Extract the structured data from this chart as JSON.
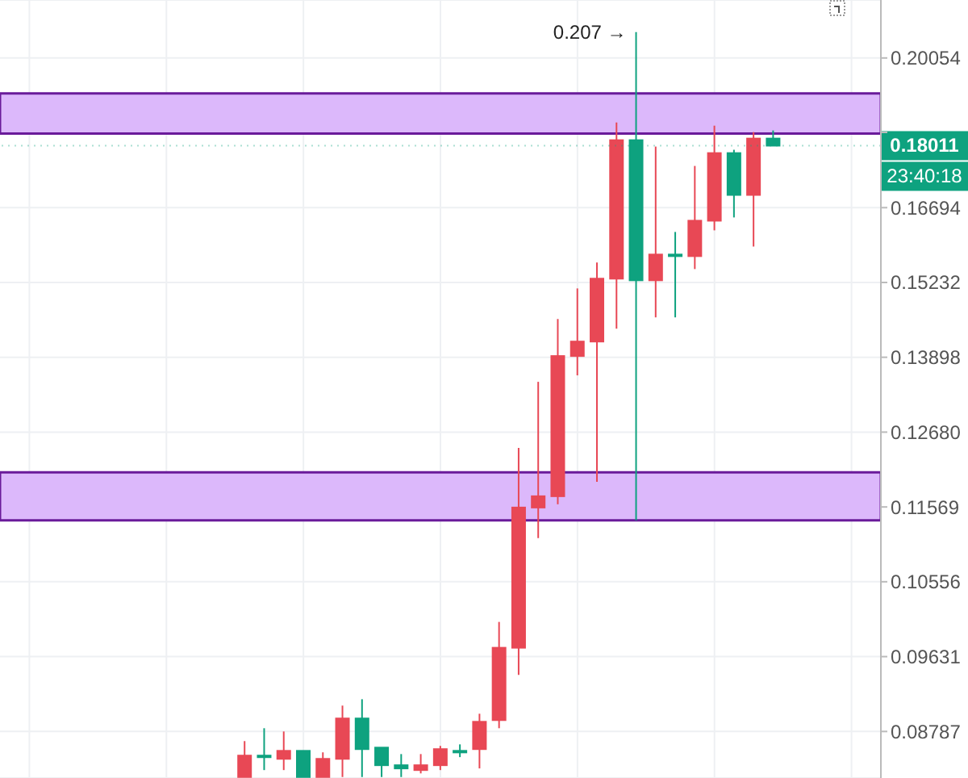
{
  "chart_data": {
    "type": "candlestick",
    "log": true,
    "grid": true,
    "categories": [
      null,
      null,
      null,
      null,
      null,
      null,
      null,
      null,
      null,
      null,
      null,
      null,
      null,
      null,
      null,
      null,
      null,
      null,
      null,
      null,
      null,
      null,
      null,
      null,
      null,
      null,
      null,
      null,
      null,
      null,
      null,
      null,
      null,
      null,
      null,
      null,
      null,
      null,
      null,
      null,
      null,
      null,
      null,
      null,
      null
    ],
    "ohlc": [
      null,
      null,
      null,
      null,
      null,
      null,
      null,
      null,
      null,
      null,
      null,
      null,
      [
        0.0831,
        0.08684,
        0.0831,
        0.08531
      ],
      [
        0.08531,
        0.08822,
        0.08381,
        0.08515
      ],
      [
        0.08497,
        0.08787,
        0.08381,
        0.08581
      ],
      [
        0.08581,
        0.08581,
        0.0831,
        0.0831
      ],
      [
        0.0831,
        0.08565,
        0.0831,
        0.08497
      ],
      [
        0.08497,
        0.0907,
        0.0831,
        0.08928
      ],
      [
        0.08928,
        0.09141,
        0.0831,
        0.08599
      ],
      [
        0.08615,
        0.08615,
        0.0831,
        0.08431
      ],
      [
        0.08431,
        0.08547,
        0.0831,
        0.08398
      ],
      [
        0.08381,
        0.08547,
        0.08347,
        0.08431
      ],
      [
        0.08431,
        0.08633,
        0.08381,
        0.08599
      ],
      [
        0.08581,
        0.08649,
        0.08515,
        0.08565
      ],
      [
        0.08599,
        0.0898,
        0.08398,
        0.08892
      ],
      [
        0.0891,
        0.10049,
        0.08822,
        0.09736
      ],
      [
        0.09736,
        0.12437,
        0.09417,
        0.11561
      ],
      [
        0.11561,
        0.13486,
        0.11136,
        0.11722
      ],
      [
        0.11722,
        0.14565,
        0.11607,
        0.13919
      ],
      [
        0.13919,
        0.15121,
        0.13593,
        0.14168
      ],
      [
        0.14168,
        0.15608,
        0.11932,
        0.15303
      ],
      [
        0.15303,
        0.18532,
        0.14395,
        0.18133
      ],
      [
        0.18133,
        0.207,
        0.11381,
        0.15272
      ],
      [
        0.15272,
        0.17991,
        0.14594,
        0.15762
      ],
      [
        0.15762,
        0.16204,
        0.14594,
        0.15731
      ],
      [
        0.15731,
        0.17569,
        0.15484,
        0.16429
      ],
      [
        0.16429,
        0.18458,
        0.16236,
        0.17848
      ],
      [
        0.17848,
        0.17921,
        0.16495,
        0.16956
      ],
      [
        0.16956,
        0.18313,
        0.15917,
        0.18169
      ],
      [
        0.18169,
        0.1835,
        0.18011,
        0.18011
      ],
      null,
      null,
      null,
      null,
      null
    ],
    "colors": [
      null,
      null,
      null,
      null,
      null,
      null,
      null,
      null,
      null,
      null,
      null,
      null,
      "#e84855",
      "#0ea27f",
      "#e84855",
      "#0ea27f",
      "#e84855",
      "#e84855",
      "#0ea27f",
      "#0ea27f",
      "#0ea27f",
      "#e84855",
      "#e84855",
      "#0ea27f",
      "#e84855",
      "#e84855",
      "#e84855",
      "#e84855",
      "#e84855",
      "#e84855",
      "#e84855",
      "#e84855",
      "#0ea27f",
      "#e84855",
      "#0ea27f",
      "#e84855",
      "#e84855",
      "#0ea27f",
      "#e84855",
      "#0ea27f",
      null,
      null,
      null,
      null,
      null
    ],
    "ylim": [
      0.083,
      0.2153
    ],
    "yticks": [
      0.20054,
      {
        "value": 0.18307,
        "label": null
      },
      0.16694,
      0.15232,
      0.13898,
      {
        "value": 0.1268,
        "label": "0.12680"
      },
      0.11569,
      0.10556,
      0.09631,
      0.08787
    ],
    "bands": [
      {
        "axis": "y",
        "from": 0.1828,
        "to": 0.192,
        "color": "#dcb8fb"
      },
      {
        "axis": "y",
        "from": 0.1138,
        "to": 0.1207,
        "color": "#dcb8fb"
      }
    ],
    "ref_lines": [
      {
        "axis": "y",
        "value": 0.18011,
        "label": "0.18011",
        "color": "#0ea27f"
      }
    ],
    "annotations": [
      "0.207 →",
      "23:40:18"
    ]
  }
}
